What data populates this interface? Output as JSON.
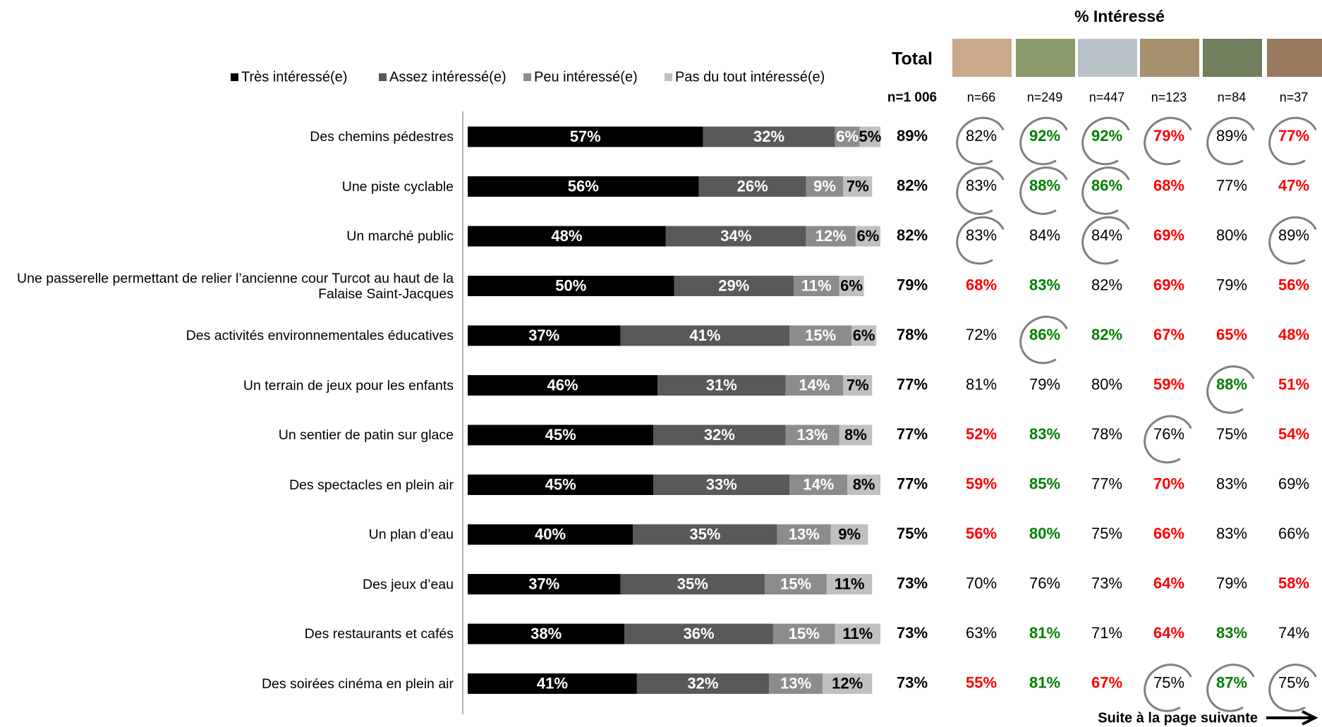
{
  "chart_data": {
    "type": "stacked-bar",
    "orientation": "horizontal",
    "xlim": [
      0,
      100
    ],
    "categories": [
      "Des chemins pédestres",
      "Une piste cyclable",
      "Un marché public",
      "Une passerelle permettant de relier l’ancienne cour Turcot au haut de la Falaise Saint-Jacques",
      "Des activités environnementales éducatives",
      "Un terrain de jeux pour les enfants",
      "Un sentier de patin sur glace",
      "Des spectacles en plein air",
      "Un plan d’eau",
      "Des jeux d’eau",
      "Des restaurants et cafés",
      "Des soirées cinéma en plein air"
    ],
    "series": [
      {
        "name": "Très intéressé(e)",
        "color": "#000000",
        "label_color": "#ffffff",
        "values": [
          57,
          56,
          48,
          50,
          37,
          46,
          45,
          45,
          40,
          37,
          38,
          41
        ],
        "value_labels": [
          "57%",
          "56%",
          "48%",
          "50%",
          "37%",
          "46%",
          "45%",
          "45%",
          "40%",
          "37%",
          "38%",
          "41%"
        ]
      },
      {
        "name": "Assez intéressé(e)",
        "color": "#595959",
        "label_color": "#ffffff",
        "values": [
          32,
          26,
          34,
          29,
          41,
          31,
          32,
          33,
          35,
          35,
          36,
          32
        ],
        "value_labels": [
          "32%",
          "26%",
          "34%",
          "29%",
          "41%",
          "31%",
          "32%",
          "33%",
          "35%",
          "35%",
          "36%",
          "32%"
        ]
      },
      {
        "name": "Peu intéressé(e)",
        "color": "#8c8c8c",
        "label_color": "#ffffff",
        "values": [
          6,
          9,
          12,
          11,
          15,
          14,
          13,
          14,
          13,
          15,
          15,
          13
        ],
        "value_labels": [
          "6%",
          "9%",
          "12%",
          "11%",
          "15%",
          "14%",
          "13%",
          "14%",
          "13%",
          "15%",
          "15%",
          "13%"
        ]
      },
      {
        "name": "Pas du tout intéressé(e)",
        "color": "#c0c0c0",
        "label_color": "#000000",
        "values": [
          5,
          7,
          6,
          6,
          6,
          7,
          8,
          8,
          9,
          11,
          11,
          12
        ],
        "value_labels": [
          "5%",
          "7%",
          "6%",
          "6%",
          "6%",
          "7%",
          "8%",
          "8%",
          "9%",
          "11%",
          "11%",
          "12%"
        ]
      }
    ]
  },
  "table": {
    "title": "% Intéressé",
    "total_header": "Total",
    "total_n": "n=1 006",
    "group_n": [
      "n=66",
      "n=249",
      "n=447",
      "n=123",
      "n=84",
      "n=37"
    ],
    "style_colors": {
      "plain": "#000000",
      "higher": "#008000",
      "lower": "#ff0000"
    },
    "circle_color": "#7f7f7f",
    "totals": [
      "89%",
      "82%",
      "82%",
      "79%",
      "78%",
      "77%",
      "77%",
      "77%",
      "75%",
      "73%",
      "73%",
      "73%"
    ],
    "rows": [
      [
        {
          "text": "82%",
          "style": "plain",
          "circled": true
        },
        {
          "text": "92%",
          "style": "higher",
          "circled": true
        },
        {
          "text": "92%",
          "style": "higher",
          "circled": true
        },
        {
          "text": "79%",
          "style": "lower",
          "circled": true
        },
        {
          "text": "89%",
          "style": "plain",
          "circled": true
        },
        {
          "text": "77%",
          "style": "lower",
          "circled": true
        }
      ],
      [
        {
          "text": "83%",
          "style": "plain",
          "circled": true
        },
        {
          "text": "88%",
          "style": "higher",
          "circled": true
        },
        {
          "text": "86%",
          "style": "higher",
          "circled": true
        },
        {
          "text": "68%",
          "style": "lower",
          "circled": false
        },
        {
          "text": "77%",
          "style": "plain",
          "circled": false
        },
        {
          "text": "47%",
          "style": "lower",
          "circled": false
        }
      ],
      [
        {
          "text": "83%",
          "style": "plain",
          "circled": true
        },
        {
          "text": "84%",
          "style": "plain",
          "circled": false
        },
        {
          "text": "84%",
          "style": "plain",
          "circled": true
        },
        {
          "text": "69%",
          "style": "lower",
          "circled": false
        },
        {
          "text": "80%",
          "style": "plain",
          "circled": false
        },
        {
          "text": "89%",
          "style": "plain",
          "circled": true
        }
      ],
      [
        {
          "text": "68%",
          "style": "lower",
          "circled": false
        },
        {
          "text": "83%",
          "style": "higher",
          "circled": false
        },
        {
          "text": "82%",
          "style": "plain",
          "circled": false
        },
        {
          "text": "69%",
          "style": "lower",
          "circled": false
        },
        {
          "text": "79%",
          "style": "plain",
          "circled": false
        },
        {
          "text": "56%",
          "style": "lower",
          "circled": false
        }
      ],
      [
        {
          "text": "72%",
          "style": "plain",
          "circled": false
        },
        {
          "text": "86%",
          "style": "higher",
          "circled": true
        },
        {
          "text": "82%",
          "style": "higher",
          "circled": false
        },
        {
          "text": "67%",
          "style": "lower",
          "circled": false
        },
        {
          "text": "65%",
          "style": "lower",
          "circled": false
        },
        {
          "text": "48%",
          "style": "lower",
          "circled": false
        }
      ],
      [
        {
          "text": "81%",
          "style": "plain",
          "circled": false
        },
        {
          "text": "79%",
          "style": "plain",
          "circled": false
        },
        {
          "text": "80%",
          "style": "plain",
          "circled": false
        },
        {
          "text": "59%",
          "style": "lower",
          "circled": false
        },
        {
          "text": "88%",
          "style": "higher",
          "circled": true
        },
        {
          "text": "51%",
          "style": "lower",
          "circled": false
        }
      ],
      [
        {
          "text": "52%",
          "style": "lower",
          "circled": false
        },
        {
          "text": "83%",
          "style": "higher",
          "circled": false
        },
        {
          "text": "78%",
          "style": "plain",
          "circled": false
        },
        {
          "text": "76%",
          "style": "plain",
          "circled": true
        },
        {
          "text": "75%",
          "style": "plain",
          "circled": false
        },
        {
          "text": "54%",
          "style": "lower",
          "circled": false
        }
      ],
      [
        {
          "text": "59%",
          "style": "lower",
          "circled": false
        },
        {
          "text": "85%",
          "style": "higher",
          "circled": false
        },
        {
          "text": "77%",
          "style": "plain",
          "circled": false
        },
        {
          "text": "70%",
          "style": "lower",
          "circled": false
        },
        {
          "text": "83%",
          "style": "plain",
          "circled": false
        },
        {
          "text": "69%",
          "style": "plain",
          "circled": false
        }
      ],
      [
        {
          "text": "56%",
          "style": "lower",
          "circled": false
        },
        {
          "text": "80%",
          "style": "higher",
          "circled": false
        },
        {
          "text": "75%",
          "style": "plain",
          "circled": false
        },
        {
          "text": "66%",
          "style": "lower",
          "circled": false
        },
        {
          "text": "83%",
          "style": "plain",
          "circled": false
        },
        {
          "text": "66%",
          "style": "plain",
          "circled": false
        }
      ],
      [
        {
          "text": "70%",
          "style": "plain",
          "circled": false
        },
        {
          "text": "76%",
          "style": "plain",
          "circled": false
        },
        {
          "text": "73%",
          "style": "plain",
          "circled": false
        },
        {
          "text": "64%",
          "style": "lower",
          "circled": false
        },
        {
          "text": "79%",
          "style": "plain",
          "circled": false
        },
        {
          "text": "58%",
          "style": "lower",
          "circled": false
        }
      ],
      [
        {
          "text": "63%",
          "style": "plain",
          "circled": false
        },
        {
          "text": "81%",
          "style": "higher",
          "circled": false
        },
        {
          "text": "71%",
          "style": "plain",
          "circled": false
        },
        {
          "text": "64%",
          "style": "lower",
          "circled": false
        },
        {
          "text": "83%",
          "style": "higher",
          "circled": false
        },
        {
          "text": "74%",
          "style": "plain",
          "circled": false
        }
      ],
      [
        {
          "text": "55%",
          "style": "lower",
          "circled": false
        },
        {
          "text": "81%",
          "style": "higher",
          "circled": false
        },
        {
          "text": "67%",
          "style": "lower",
          "circled": false
        },
        {
          "text": "75%",
          "style": "plain",
          "circled": true
        },
        {
          "text": "87%",
          "style": "higher",
          "circled": true
        },
        {
          "text": "75%",
          "style": "plain",
          "circled": true
        }
      ]
    ]
  },
  "footer": {
    "note": "Suite à la page suivante"
  }
}
